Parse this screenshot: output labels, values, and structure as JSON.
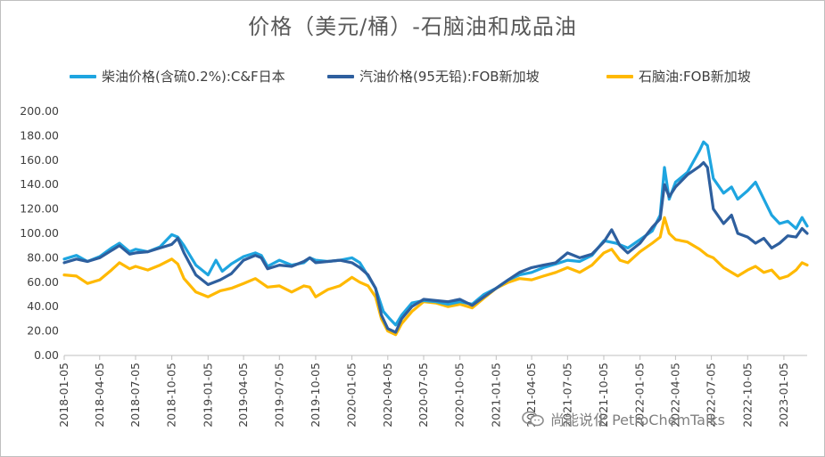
{
  "chart_data": {
    "type": "line",
    "title": "价格（美元/桶）-石脑油和成品油",
    "xlabel": "",
    "ylabel": "",
    "ylim": [
      0,
      200
    ],
    "y_ticks": [
      "0.00",
      "20.00",
      "40.00",
      "60.00",
      "80.00",
      "100.00",
      "120.00",
      "140.00",
      "160.00",
      "180.00",
      "200.00"
    ],
    "x_ticks": [
      "2018-01-05",
      "2018-04-05",
      "2018-07-05",
      "2018-10-05",
      "2019-01-05",
      "2019-04-05",
      "2019-07-05",
      "2019-10-05",
      "2020-01-05",
      "2020-04-05",
      "2020-07-05",
      "2020-10-05",
      "2021-01-05",
      "2021-04-05",
      "2021-07-05",
      "2021-10-05",
      "2022-01-05",
      "2022-04-05",
      "2022-07-05",
      "2022-10-05",
      "2023-01-05"
    ],
    "x_range": [
      "2018-01-05",
      "2023-03-05"
    ],
    "grid": false,
    "legend_position": "top",
    "series": [
      {
        "name": "柴油价格(含硫0.2%):C&F日本",
        "color": "#1ea5e0",
        "points": [
          [
            "2018-01-05",
            79
          ],
          [
            "2018-02-05",
            82
          ],
          [
            "2018-03-05",
            77
          ],
          [
            "2018-04-05",
            81
          ],
          [
            "2018-05-05",
            88
          ],
          [
            "2018-05-25",
            92
          ],
          [
            "2018-06-20",
            85
          ],
          [
            "2018-07-05",
            87
          ],
          [
            "2018-08-05",
            85
          ],
          [
            "2018-09-05",
            89
          ],
          [
            "2018-10-05",
            99
          ],
          [
            "2018-10-20",
            97
          ],
          [
            "2018-11-05",
            90
          ],
          [
            "2018-12-05",
            74
          ],
          [
            "2019-01-05",
            66
          ],
          [
            "2019-01-25",
            78
          ],
          [
            "2019-02-10",
            69
          ],
          [
            "2019-03-05",
            75
          ],
          [
            "2019-04-05",
            81
          ],
          [
            "2019-05-05",
            84
          ],
          [
            "2019-05-20",
            82
          ],
          [
            "2019-06-05",
            73
          ],
          [
            "2019-07-05",
            78
          ],
          [
            "2019-08-05",
            74
          ],
          [
            "2019-09-05",
            76
          ],
          [
            "2019-09-20",
            80
          ],
          [
            "2019-10-05",
            78
          ],
          [
            "2019-11-05",
            77
          ],
          [
            "2019-12-05",
            78
          ],
          [
            "2020-01-05",
            80
          ],
          [
            "2020-01-25",
            76
          ],
          [
            "2020-02-15",
            65
          ],
          [
            "2020-03-05",
            55
          ],
          [
            "2020-03-25",
            36
          ],
          [
            "2020-04-10",
            30
          ],
          [
            "2020-04-25",
            25
          ],
          [
            "2020-05-10",
            33
          ],
          [
            "2020-06-05",
            43
          ],
          [
            "2020-07-05",
            45
          ],
          [
            "2020-08-05",
            44
          ],
          [
            "2020-09-05",
            42
          ],
          [
            "2020-10-05",
            44
          ],
          [
            "2020-11-05",
            42
          ],
          [
            "2020-12-05",
            50
          ],
          [
            "2021-01-05",
            55
          ],
          [
            "2021-02-05",
            62
          ],
          [
            "2021-03-05",
            66
          ],
          [
            "2021-04-05",
            68
          ],
          [
            "2021-05-05",
            72
          ],
          [
            "2021-06-05",
            75
          ],
          [
            "2021-07-05",
            78
          ],
          [
            "2021-08-05",
            77
          ],
          [
            "2021-09-05",
            82
          ],
          [
            "2021-10-05",
            94
          ],
          [
            "2021-11-05",
            92
          ],
          [
            "2021-12-05",
            88
          ],
          [
            "2022-01-05",
            95
          ],
          [
            "2022-02-05",
            102
          ],
          [
            "2022-02-25",
            115
          ],
          [
            "2022-03-08",
            154
          ],
          [
            "2022-03-20",
            128
          ],
          [
            "2022-04-05",
            142
          ],
          [
            "2022-05-05",
            150
          ],
          [
            "2022-06-05",
            168
          ],
          [
            "2022-06-15",
            175
          ],
          [
            "2022-06-25",
            172
          ],
          [
            "2022-07-10",
            145
          ],
          [
            "2022-08-05",
            133
          ],
          [
            "2022-08-25",
            138
          ],
          [
            "2022-09-10",
            128
          ],
          [
            "2022-10-05",
            135
          ],
          [
            "2022-10-25",
            142
          ],
          [
            "2022-11-15",
            128
          ],
          [
            "2022-12-05",
            115
          ],
          [
            "2022-12-25",
            108
          ],
          [
            "2023-01-15",
            110
          ],
          [
            "2023-02-05",
            104
          ],
          [
            "2023-02-20",
            113
          ],
          [
            "2023-03-05",
            106
          ]
        ]
      },
      {
        "name": "汽油价格(95无铅):FOB新加坡",
        "color": "#2e5f9e",
        "points": [
          [
            "2018-01-05",
            76
          ],
          [
            "2018-02-05",
            79
          ],
          [
            "2018-03-05",
            77
          ],
          [
            "2018-04-05",
            80
          ],
          [
            "2018-05-05",
            86
          ],
          [
            "2018-05-25",
            90
          ],
          [
            "2018-06-20",
            83
          ],
          [
            "2018-07-05",
            84
          ],
          [
            "2018-08-05",
            85
          ],
          [
            "2018-09-05",
            88
          ],
          [
            "2018-10-05",
            91
          ],
          [
            "2018-10-20",
            96
          ],
          [
            "2018-11-05",
            84
          ],
          [
            "2018-12-05",
            66
          ],
          [
            "2019-01-05",
            58
          ],
          [
            "2019-02-05",
            62
          ],
          [
            "2019-03-05",
            67
          ],
          [
            "2019-04-05",
            78
          ],
          [
            "2019-05-05",
            82
          ],
          [
            "2019-05-20",
            80
          ],
          [
            "2019-06-05",
            71
          ],
          [
            "2019-07-05",
            74
          ],
          [
            "2019-08-05",
            73
          ],
          [
            "2019-09-05",
            77
          ],
          [
            "2019-09-20",
            80
          ],
          [
            "2019-10-05",
            76
          ],
          [
            "2019-11-05",
            77
          ],
          [
            "2019-12-05",
            78
          ],
          [
            "2020-01-05",
            76
          ],
          [
            "2020-01-25",
            72
          ],
          [
            "2020-02-15",
            66
          ],
          [
            "2020-03-05",
            55
          ],
          [
            "2020-03-20",
            33
          ],
          [
            "2020-04-05",
            22
          ],
          [
            "2020-04-25",
            19
          ],
          [
            "2020-05-10",
            30
          ],
          [
            "2020-06-05",
            40
          ],
          [
            "2020-07-05",
            46
          ],
          [
            "2020-08-05",
            45
          ],
          [
            "2020-09-05",
            44
          ],
          [
            "2020-10-05",
            46
          ],
          [
            "2020-11-05",
            41
          ],
          [
            "2020-12-05",
            48
          ],
          [
            "2021-01-05",
            55
          ],
          [
            "2021-02-05",
            62
          ],
          [
            "2021-03-05",
            68
          ],
          [
            "2021-04-05",
            72
          ],
          [
            "2021-05-05",
            74
          ],
          [
            "2021-06-05",
            76
          ],
          [
            "2021-07-05",
            84
          ],
          [
            "2021-08-05",
            80
          ],
          [
            "2021-09-05",
            83
          ],
          [
            "2021-10-05",
            93
          ],
          [
            "2021-10-25",
            103
          ],
          [
            "2021-11-15",
            90
          ],
          [
            "2021-12-05",
            84
          ],
          [
            "2022-01-05",
            92
          ],
          [
            "2022-02-05",
            105
          ],
          [
            "2022-02-25",
            112
          ],
          [
            "2022-03-08",
            140
          ],
          [
            "2022-03-20",
            130
          ],
          [
            "2022-04-05",
            138
          ],
          [
            "2022-05-05",
            148
          ],
          [
            "2022-06-05",
            155
          ],
          [
            "2022-06-15",
            158
          ],
          [
            "2022-06-25",
            154
          ],
          [
            "2022-07-10",
            120
          ],
          [
            "2022-08-05",
            108
          ],
          [
            "2022-08-25",
            115
          ],
          [
            "2022-09-10",
            100
          ],
          [
            "2022-10-05",
            97
          ],
          [
            "2022-10-25",
            92
          ],
          [
            "2022-11-15",
            96
          ],
          [
            "2022-12-05",
            88
          ],
          [
            "2022-12-25",
            92
          ],
          [
            "2023-01-15",
            98
          ],
          [
            "2023-02-05",
            97
          ],
          [
            "2023-02-20",
            104
          ],
          [
            "2023-03-05",
            100
          ]
        ]
      },
      {
        "name": "石脑油:FOB新加坡",
        "color": "#ffb900",
        "points": [
          [
            "2018-01-05",
            66
          ],
          [
            "2018-02-05",
            65
          ],
          [
            "2018-03-05",
            59
          ],
          [
            "2018-04-05",
            62
          ],
          [
            "2018-05-05",
            70
          ],
          [
            "2018-05-25",
            76
          ],
          [
            "2018-06-20",
            71
          ],
          [
            "2018-07-05",
            73
          ],
          [
            "2018-08-05",
            70
          ],
          [
            "2018-09-05",
            74
          ],
          [
            "2018-10-05",
            79
          ],
          [
            "2018-10-20",
            75
          ],
          [
            "2018-11-05",
            63
          ],
          [
            "2018-12-05",
            52
          ],
          [
            "2019-01-05",
            48
          ],
          [
            "2019-02-05",
            53
          ],
          [
            "2019-03-05",
            55
          ],
          [
            "2019-04-05",
            59
          ],
          [
            "2019-05-05",
            63
          ],
          [
            "2019-06-05",
            56
          ],
          [
            "2019-07-05",
            57
          ],
          [
            "2019-08-05",
            52
          ],
          [
            "2019-09-05",
            57
          ],
          [
            "2019-09-20",
            56
          ],
          [
            "2019-10-05",
            48
          ],
          [
            "2019-11-05",
            54
          ],
          [
            "2019-12-05",
            57
          ],
          [
            "2020-01-05",
            64
          ],
          [
            "2020-01-25",
            60
          ],
          [
            "2020-02-15",
            57
          ],
          [
            "2020-03-05",
            48
          ],
          [
            "2020-03-20",
            30
          ],
          [
            "2020-04-05",
            20
          ],
          [
            "2020-04-25",
            17
          ],
          [
            "2020-05-10",
            26
          ],
          [
            "2020-06-05",
            36
          ],
          [
            "2020-07-05",
            44
          ],
          [
            "2020-08-05",
            43
          ],
          [
            "2020-09-05",
            40
          ],
          [
            "2020-10-05",
            42
          ],
          [
            "2020-11-05",
            39
          ],
          [
            "2020-12-05",
            47
          ],
          [
            "2021-01-05",
            55
          ],
          [
            "2021-02-05",
            60
          ],
          [
            "2021-03-05",
            63
          ],
          [
            "2021-04-05",
            62
          ],
          [
            "2021-05-05",
            65
          ],
          [
            "2021-06-05",
            68
          ],
          [
            "2021-07-05",
            72
          ],
          [
            "2021-08-05",
            68
          ],
          [
            "2021-09-05",
            74
          ],
          [
            "2021-10-05",
            84
          ],
          [
            "2021-10-25",
            87
          ],
          [
            "2021-11-15",
            78
          ],
          [
            "2021-12-05",
            76
          ],
          [
            "2022-01-05",
            85
          ],
          [
            "2022-02-05",
            92
          ],
          [
            "2022-02-25",
            97
          ],
          [
            "2022-03-08",
            113
          ],
          [
            "2022-03-20",
            100
          ],
          [
            "2022-04-05",
            95
          ],
          [
            "2022-05-05",
            93
          ],
          [
            "2022-06-05",
            87
          ],
          [
            "2022-06-25",
            82
          ],
          [
            "2022-07-10",
            80
          ],
          [
            "2022-08-05",
            72
          ],
          [
            "2022-08-25",
            68
          ],
          [
            "2022-09-10",
            65
          ],
          [
            "2022-10-05",
            70
          ],
          [
            "2022-10-25",
            73
          ],
          [
            "2022-11-15",
            68
          ],
          [
            "2022-12-05",
            70
          ],
          [
            "2022-12-25",
            63
          ],
          [
            "2023-01-15",
            65
          ],
          [
            "2023-02-05",
            70
          ],
          [
            "2023-02-20",
            76
          ],
          [
            "2023-03-05",
            74
          ]
        ]
      }
    ]
  },
  "watermark": {
    "text": "尚能说化 PetroChemTalks",
    "icon": "wechat-icon"
  }
}
